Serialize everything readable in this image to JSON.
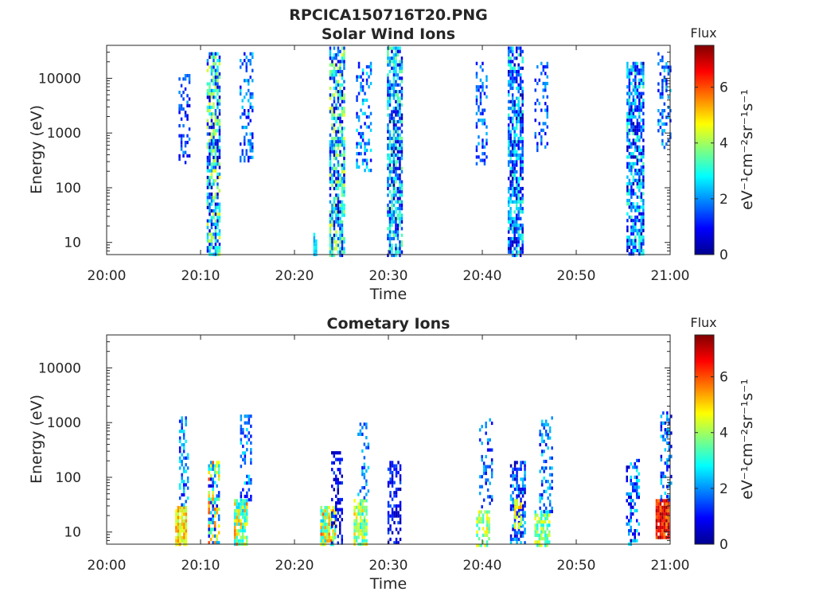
{
  "figure": {
    "title": "RPCICA150716T20.PNG"
  },
  "chart_data": [
    {
      "type": "heatmap",
      "title": "Solar Wind Ions",
      "xlabel": "Time",
      "ylabel": "Energy (eV)",
      "x_tick_labels": [
        "20:00",
        "20:10",
        "20:20",
        "20:30",
        "20:40",
        "20:50",
        "21:00"
      ],
      "x_range_minutes": [
        0,
        60
      ],
      "y_tick_labels": [
        "10",
        "100",
        "1000",
        "10000"
      ],
      "y_scale": "log",
      "y_range_eV": [
        6,
        40000
      ],
      "colorbar": {
        "label": "Flux",
        "unit_label": "eV⁻¹cm⁻²sr⁻¹s⁻¹",
        "tick_labels": [
          "0",
          "2",
          "4",
          "6"
        ],
        "range": [
          0,
          7.5
        ],
        "colormap": "jet"
      },
      "bursts": [
        {
          "t": 8.2,
          "w": 1.1,
          "emin": 280,
          "emax": 12000,
          "density": 0.35,
          "vmin": 0.6,
          "vmax": 2.2
        },
        {
          "t": 11.3,
          "w": 1.3,
          "emin": 6,
          "emax": 30000,
          "density": 0.7,
          "vmin": 0.3,
          "vmax": 4.6
        },
        {
          "t": 14.8,
          "w": 1.3,
          "emin": 300,
          "emax": 30000,
          "density": 0.35,
          "vmin": 0.8,
          "vmax": 2.6
        },
        {
          "t": 22.2,
          "w": 0.4,
          "emin": 6,
          "emax": 15,
          "density": 0.7,
          "vmin": 2.2,
          "vmax": 3.0
        },
        {
          "t": 24.5,
          "w": 1.6,
          "emin": 6,
          "emax": 38000,
          "density": 0.7,
          "vmin": 0.3,
          "vmax": 4.6
        },
        {
          "t": 27.3,
          "w": 1.5,
          "emin": 200,
          "emax": 20000,
          "density": 0.35,
          "vmin": 0.8,
          "vmax": 2.8
        },
        {
          "t": 30.6,
          "w": 1.5,
          "emin": 6,
          "emax": 38000,
          "density": 0.72,
          "vmin": 0.3,
          "vmax": 3.8
        },
        {
          "t": 39.9,
          "w": 1.2,
          "emin": 250,
          "emax": 20000,
          "density": 0.3,
          "vmin": 0.8,
          "vmax": 2.4
        },
        {
          "t": 43.5,
          "w": 1.6,
          "emin": 6,
          "emax": 38000,
          "density": 0.7,
          "vmin": 0.3,
          "vmax": 3.4
        },
        {
          "t": 46.2,
          "w": 1.3,
          "emin": 500,
          "emax": 20000,
          "density": 0.3,
          "vmin": 0.8,
          "vmax": 2.4
        },
        {
          "t": 56.2,
          "w": 1.7,
          "emin": 6,
          "emax": 20000,
          "density": 0.68,
          "vmin": 0.3,
          "vmax": 3.4
        },
        {
          "t": 59.3,
          "w": 1.3,
          "emin": 500,
          "emax": 30000,
          "density": 0.35,
          "vmin": 0.8,
          "vmax": 2.6
        }
      ]
    },
    {
      "type": "heatmap",
      "title": "Cometary Ions",
      "xlabel": "Time",
      "ylabel": "Energy (eV)",
      "x_tick_labels": [
        "20:00",
        "20:10",
        "20:20",
        "20:30",
        "20:40",
        "20:50",
        "21:00"
      ],
      "x_range_minutes": [
        0,
        60
      ],
      "y_tick_labels": [
        "10",
        "100",
        "1000",
        "10000"
      ],
      "y_scale": "log",
      "y_range_eV": [
        6,
        40000
      ],
      "colorbar": {
        "label": "Flux",
        "unit_label": "eV⁻¹cm⁻²sr⁻¹s⁻¹",
        "tick_labels": [
          "0",
          "2",
          "4",
          "6"
        ],
        "range": [
          0,
          7.5
        ],
        "colormap": "jet"
      },
      "bursts": [
        {
          "t": 7.9,
          "w": 1.2,
          "emin": 6,
          "emax": 30,
          "density": 0.9,
          "vmin": 4.0,
          "vmax": 5.6
        },
        {
          "t": 8.2,
          "w": 1.0,
          "emin": 30,
          "emax": 1300,
          "density": 0.35,
          "vmin": 0.8,
          "vmax": 2.8
        },
        {
          "t": 11.4,
          "w": 1.2,
          "emin": 6,
          "emax": 200,
          "density": 0.6,
          "vmin": 0.4,
          "vmax": 6.2
        },
        {
          "t": 14.2,
          "w": 1.3,
          "emin": 6,
          "emax": 40,
          "density": 0.8,
          "vmin": 2.4,
          "vmax": 5.8
        },
        {
          "t": 14.8,
          "w": 1.2,
          "emin": 40,
          "emax": 1400,
          "density": 0.35,
          "vmin": 0.8,
          "vmax": 2.8
        },
        {
          "t": 23.5,
          "w": 1.5,
          "emin": 6,
          "emax": 30,
          "density": 0.85,
          "vmin": 2.4,
          "vmax": 6.0
        },
        {
          "t": 24.5,
          "w": 1.2,
          "emin": 6,
          "emax": 300,
          "density": 0.4,
          "vmin": 0.3,
          "vmax": 1.6
        },
        {
          "t": 27.0,
          "w": 1.4,
          "emin": 6,
          "emax": 40,
          "density": 0.8,
          "vmin": 2.6,
          "vmax": 5.2
        },
        {
          "t": 27.3,
          "w": 1.2,
          "emin": 40,
          "emax": 1000,
          "density": 0.3,
          "vmin": 1.0,
          "vmax": 2.6
        },
        {
          "t": 30.6,
          "w": 1.4,
          "emin": 6,
          "emax": 200,
          "density": 0.5,
          "vmin": 0.3,
          "vmax": 1.6
        },
        {
          "t": 40.0,
          "w": 1.3,
          "emin": 6,
          "emax": 25,
          "density": 0.6,
          "vmin": 3.0,
          "vmax": 5.0
        },
        {
          "t": 40.3,
          "w": 1.3,
          "emin": 30,
          "emax": 1200,
          "density": 0.3,
          "vmin": 0.6,
          "vmax": 2.4
        },
        {
          "t": 43.7,
          "w": 1.5,
          "emin": 6,
          "emax": 200,
          "density": 0.55,
          "vmin": 0.3,
          "vmax": 2.6
        },
        {
          "t": 43.8,
          "w": 0.8,
          "emin": 12,
          "emax": 40,
          "density": 0.6,
          "vmin": 4.0,
          "vmax": 5.4
        },
        {
          "t": 46.3,
          "w": 1.5,
          "emin": 6,
          "emax": 25,
          "density": 0.7,
          "vmin": 2.6,
          "vmax": 4.8
        },
        {
          "t": 46.7,
          "w": 1.3,
          "emin": 25,
          "emax": 1300,
          "density": 0.3,
          "vmin": 0.8,
          "vmax": 2.8
        },
        {
          "t": 56.0,
          "w": 1.4,
          "emin": 6,
          "emax": 250,
          "density": 0.45,
          "vmin": 0.3,
          "vmax": 3.0
        },
        {
          "t": 59.1,
          "w": 1.3,
          "emin": 8,
          "emax": 40,
          "density": 0.92,
          "vmin": 5.5,
          "vmax": 7.4
        },
        {
          "t": 59.5,
          "w": 1.1,
          "emin": 40,
          "emax": 1600,
          "density": 0.35,
          "vmin": 0.6,
          "vmax": 2.6
        }
      ]
    }
  ]
}
